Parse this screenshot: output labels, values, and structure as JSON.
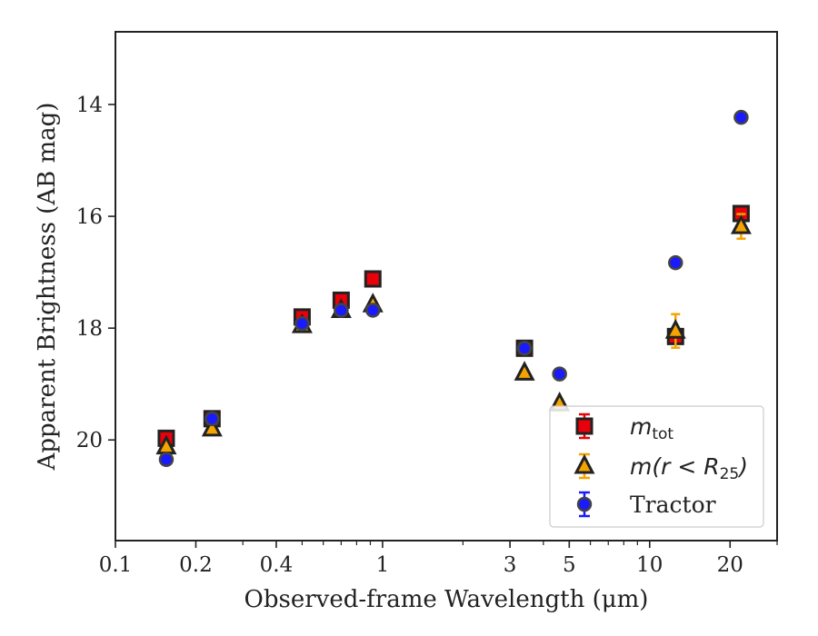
{
  "chart_data": {
    "type": "scatter",
    "xlabel": "Observed-frame Wavelength (μm)",
    "ylabel": "Apparent Brightness (AB mag)",
    "xscale": "log",
    "xlim": [
      0.1,
      30
    ],
    "ylim": [
      21.8,
      12.7
    ],
    "y_inverted": true,
    "x_ticks": [
      {
        "value": 0.1,
        "label": "0.1"
      },
      {
        "value": 0.2,
        "label": "0.2"
      },
      {
        "value": 0.4,
        "label": "0.4"
      },
      {
        "value": 1,
        "label": "1"
      },
      {
        "value": 3,
        "label": "3"
      },
      {
        "value": 5,
        "label": "5"
      },
      {
        "value": 10,
        "label": "10"
      },
      {
        "value": 20,
        "label": "20"
      }
    ],
    "y_ticks": [
      {
        "value": 14,
        "label": "14"
      },
      {
        "value": 16,
        "label": "16"
      },
      {
        "value": 18,
        "label": "18"
      },
      {
        "value": 20,
        "label": "20"
      }
    ],
    "grid": false,
    "legend_position": "lower right",
    "series": [
      {
        "name": "m_tot",
        "marker": "square",
        "color": "#e8000b",
        "edge_color": "#222222",
        "points": [
          {
            "x": 0.155,
            "y": 19.97,
            "err": 0.05
          },
          {
            "x": 0.23,
            "y": 19.62,
            "err": 0.05
          },
          {
            "x": 0.5,
            "y": 17.8,
            "err": 0.05
          },
          {
            "x": 0.7,
            "y": 17.5,
            "err": 0.05
          },
          {
            "x": 0.92,
            "y": 17.12,
            "err": 0.05
          },
          {
            "x": 3.4,
            "y": 18.36,
            "err": 0.05
          },
          {
            "x": 12.5,
            "y": 18.15,
            "err": 0.12
          },
          {
            "x": 22,
            "y": 15.95,
            "err": 0.08
          }
        ]
      },
      {
        "name": "m(r < R25)",
        "marker": "triangle",
        "color": "#f5a300",
        "edge_color": "#222222",
        "points": [
          {
            "x": 0.155,
            "y": 20.12,
            "err": 0.05
          },
          {
            "x": 0.23,
            "y": 19.8,
            "err": 0.05
          },
          {
            "x": 0.5,
            "y": 17.95,
            "err": 0.05
          },
          {
            "x": 0.7,
            "y": 17.68,
            "err": 0.05
          },
          {
            "x": 0.92,
            "y": 17.58,
            "err": 0.05
          },
          {
            "x": 3.4,
            "y": 18.8,
            "err": 0.05
          },
          {
            "x": 4.6,
            "y": 19.35,
            "err": 0.05
          },
          {
            "x": 12.5,
            "y": 18.05,
            "err": 0.3
          },
          {
            "x": 22,
            "y": 16.18,
            "err": 0.22
          }
        ]
      },
      {
        "name": "Tractor",
        "marker": "circle",
        "color": "#1a1aff",
        "edge_color": "#444444",
        "points": [
          {
            "x": 0.155,
            "y": 20.35,
            "err": 0.05
          },
          {
            "x": 0.23,
            "y": 19.62,
            "err": 0.05
          },
          {
            "x": 0.5,
            "y": 17.92,
            "err": 0.05
          },
          {
            "x": 0.7,
            "y": 17.68,
            "err": 0.05
          },
          {
            "x": 0.92,
            "y": 17.68,
            "err": 0.05
          },
          {
            "x": 3.4,
            "y": 18.36,
            "err": 0.05
          },
          {
            "x": 4.6,
            "y": 18.82,
            "err": 0.05
          },
          {
            "x": 12.5,
            "y": 16.83,
            "err": 0.05
          },
          {
            "x": 22,
            "y": 14.23,
            "err": 0.05
          }
        ]
      }
    ]
  }
}
